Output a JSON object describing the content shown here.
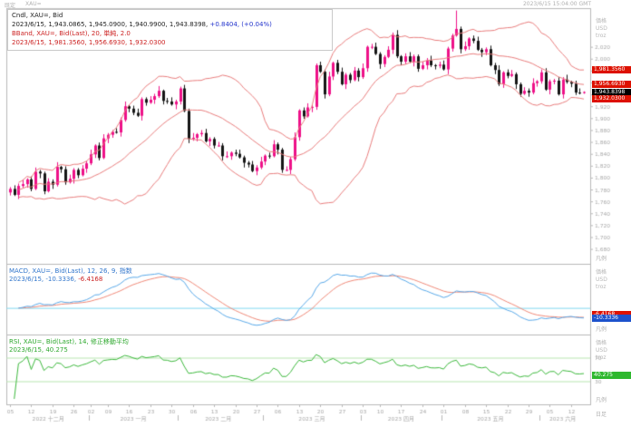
{
  "header": {
    "preset_label": "既定",
    "symbol": "XAU=",
    "timestamp": "2023/6/15 15:04:00 GMT"
  },
  "main_legend": {
    "line1": "Cndl, XAU=, Bid",
    "line2_black": "2023/6/15, 1,943.0865, 1,945.0900, 1,940.9900, 1,943.8398, ",
    "line2_blue": "+0.8404, (+0.04%)",
    "line3": "BBand, XAU=, Bid(Last), 20, 単純, 2.0",
    "line4": "2023/6/15, 1,981.3560, 1,956.6930, 1,932.0300"
  },
  "macd_legend": {
    "line1": "MACD, XAU=, Bid(Last), 12, 26, 9, 指数",
    "line2_blue": "2023/6/15, -10.3336, ",
    "line2_red": "-6.4168"
  },
  "rsi_legend": {
    "line1": "RSI, XAU=, Bid(Last), 14, 修正移動平均",
    "line2": "2023/6/15, 40.275"
  },
  "axis": {
    "pane_header": [
      "価格",
      "USD",
      "troz"
    ],
    "legend_label": "凡例",
    "interval_label": "日足",
    "price_ticks": [
      "2,020",
      "2,000",
      "1,980",
      "1,960",
      "1,940",
      "1,920",
      "1,900",
      "1,880",
      "1,860",
      "1,840",
      "1,820",
      "1,800",
      "1,780",
      "1,760",
      "1,740",
      "1,720",
      "1,700",
      "1,680"
    ],
    "rsi_ticks": [
      "70",
      "30"
    ]
  },
  "tags": [
    {
      "name": "bband-upper-tag",
      "text": "1,981.3560",
      "bg": "#dd1100",
      "pane": "main",
      "value": 1981.356
    },
    {
      "name": "bband-middle-tag",
      "text": "1,956.6930",
      "bg": "#dd1100",
      "pane": "main",
      "value": 1956.693
    },
    {
      "name": "last-price-tag",
      "text": "1,943.8398",
      "bg": "#000000",
      "pane": "main",
      "value": 1943.84
    },
    {
      "name": "bband-lower-tag",
      "text": "1,932.0300",
      "bg": "#dd1100",
      "pane": "main",
      "value": 1932.03
    },
    {
      "name": "macd-signal-tag",
      "text": "-6.4168",
      "bg": "#dd1100",
      "pane": "macd",
      "value": -6.4168
    },
    {
      "name": "macd-line-tag",
      "text": "-10.3336",
      "bg": "#1d52cc",
      "pane": "macd",
      "value": -10.3336
    },
    {
      "name": "rsi-tag",
      "text": "40.275",
      "bg": "#2eb82e",
      "pane": "rsi",
      "value": 40.275
    }
  ],
  "chart_data": {
    "type": "candlestick",
    "symbol": "XAU=",
    "quote": "Bid",
    "interval": "daily",
    "date_range": "2022-12-05 to 2023-06-15",
    "main": {
      "ylim": [
        1655,
        2085
      ],
      "open_first": 1775,
      "closes": [
        1781,
        1771,
        1786,
        1789,
        1797,
        1781,
        1810,
        1807,
        1777,
        1793,
        1788,
        1818,
        1814,
        1792,
        1798,
        1813,
        1804,
        1815,
        1824,
        1839,
        1854,
        1833,
        1866,
        1872,
        1877,
        1876,
        1897,
        1920,
        1916,
        1909,
        1904,
        1932,
        1926,
        1931,
        1937,
        1946,
        1929,
        1928,
        1923,
        1928,
        1950,
        1912,
        1865,
        1867,
        1873,
        1875,
        1861,
        1865,
        1854,
        1854,
        1836,
        1836,
        1842,
        1840,
        1834,
        1825,
        1822,
        1811,
        1817,
        1827,
        1837,
        1836,
        1856,
        1847,
        1813,
        1813,
        1831,
        1868,
        1913,
        1903,
        1918,
        1919,
        1989,
        1978,
        1940,
        1970,
        1993,
        1978,
        1957,
        1973,
        1964,
        1980,
        1969,
        1984,
        2020,
        2020,
        2008,
        1991,
        2003,
        2015,
        2040,
        2004,
        1995,
        2004,
        1995,
        2004,
        1983,
        1989,
        1997,
        1989,
        1988,
        1990,
        1982,
        2017,
        2039,
        2050,
        2016,
        2021,
        2034,
        2030,
        2015,
        2011,
        2016,
        1989,
        1981,
        1957,
        1977,
        1971,
        1974,
        1957,
        1941,
        1946,
        1943,
        1959,
        1962,
        1977,
        1948,
        1962,
        1963,
        1940,
        1965,
        1961,
        1958,
        1943,
        1942,
        1943.84
      ],
      "special": {
        "last_ohlc": [
          1943.09,
          1945.09,
          1940.99,
          1943.84
        ],
        "spike_index": 105,
        "spike_high": 2081
      },
      "bollinger": {
        "period": 20,
        "ma_type": "単純",
        "stdev": 2.0,
        "last_upper": 1981.356,
        "last_middle": 1956.693,
        "last_lower": 1932.03
      },
      "last_price": 1943.8398,
      "change": 0.8404,
      "change_pct": 0.04
    },
    "macd": {
      "fast": 12,
      "slow": 26,
      "signal_period": 9,
      "ma_type": "指数",
      "last_macd": -10.3336,
      "last_signal": -6.4168
    },
    "rsi": {
      "period": 14,
      "ma_type": "修正移動平均",
      "last": 40.275,
      "levels": [
        70,
        30
      ]
    },
    "x_axis": {
      "week_ticks": [
        {
          "i": 0,
          "label": "05"
        },
        {
          "i": 5,
          "label": "12"
        },
        {
          "i": 10,
          "label": "19"
        },
        {
          "i": 15,
          "label": "26"
        },
        {
          "i": 19,
          "label": "02"
        },
        {
          "i": 23,
          "label": "09"
        },
        {
          "i": 28,
          "label": "16"
        },
        {
          "i": 33,
          "label": "23"
        },
        {
          "i": 38,
          "label": "30"
        },
        {
          "i": 43,
          "label": "06"
        },
        {
          "i": 48,
          "label": "13"
        },
        {
          "i": 53,
          "label": "20"
        },
        {
          "i": 58,
          "label": "27"
        },
        {
          "i": 63,
          "label": "06"
        },
        {
          "i": 68,
          "label": "13"
        },
        {
          "i": 73,
          "label": "20"
        },
        {
          "i": 78,
          "label": "27"
        },
        {
          "i": 83,
          "label": "03"
        },
        {
          "i": 87,
          "label": "10"
        },
        {
          "i": 92,
          "label": "17"
        },
        {
          "i": 97,
          "label": "24"
        },
        {
          "i": 102,
          "label": "01"
        },
        {
          "i": 107,
          "label": "08"
        },
        {
          "i": 112,
          "label": "15"
        },
        {
          "i": 117,
          "label": "22"
        },
        {
          "i": 122,
          "label": "29"
        },
        {
          "i": 127,
          "label": "05"
        },
        {
          "i": 132,
          "label": "12"
        }
      ],
      "month_labels": [
        {
          "i": 9,
          "label": "2022 十二月"
        },
        {
          "i": 29,
          "label": "2023 一月"
        },
        {
          "i": 49,
          "label": "2023 二月"
        },
        {
          "i": 71,
          "label": "2023 三月"
        },
        {
          "i": 92,
          "label": "2023 四月"
        },
        {
          "i": 113,
          "label": "2023 五月"
        },
        {
          "i": 130,
          "label": "2023 六月"
        }
      ],
      "month_dividers": [
        18.5,
        39.5,
        59.5,
        82.5,
        101.5,
        124.5
      ]
    },
    "colors": {
      "up": "#ee1188",
      "down": "#151515",
      "bband": "#e87c7c",
      "macd_line": "#58a8e8",
      "macd_signal": "#ef8877",
      "macd_zero": "#7fd8f0",
      "rsi_line": "#3cb83c",
      "rsi_ref": "#b8e4b0",
      "grey_text": "#a8a8a8",
      "frame": "#b8b8b8"
    }
  }
}
